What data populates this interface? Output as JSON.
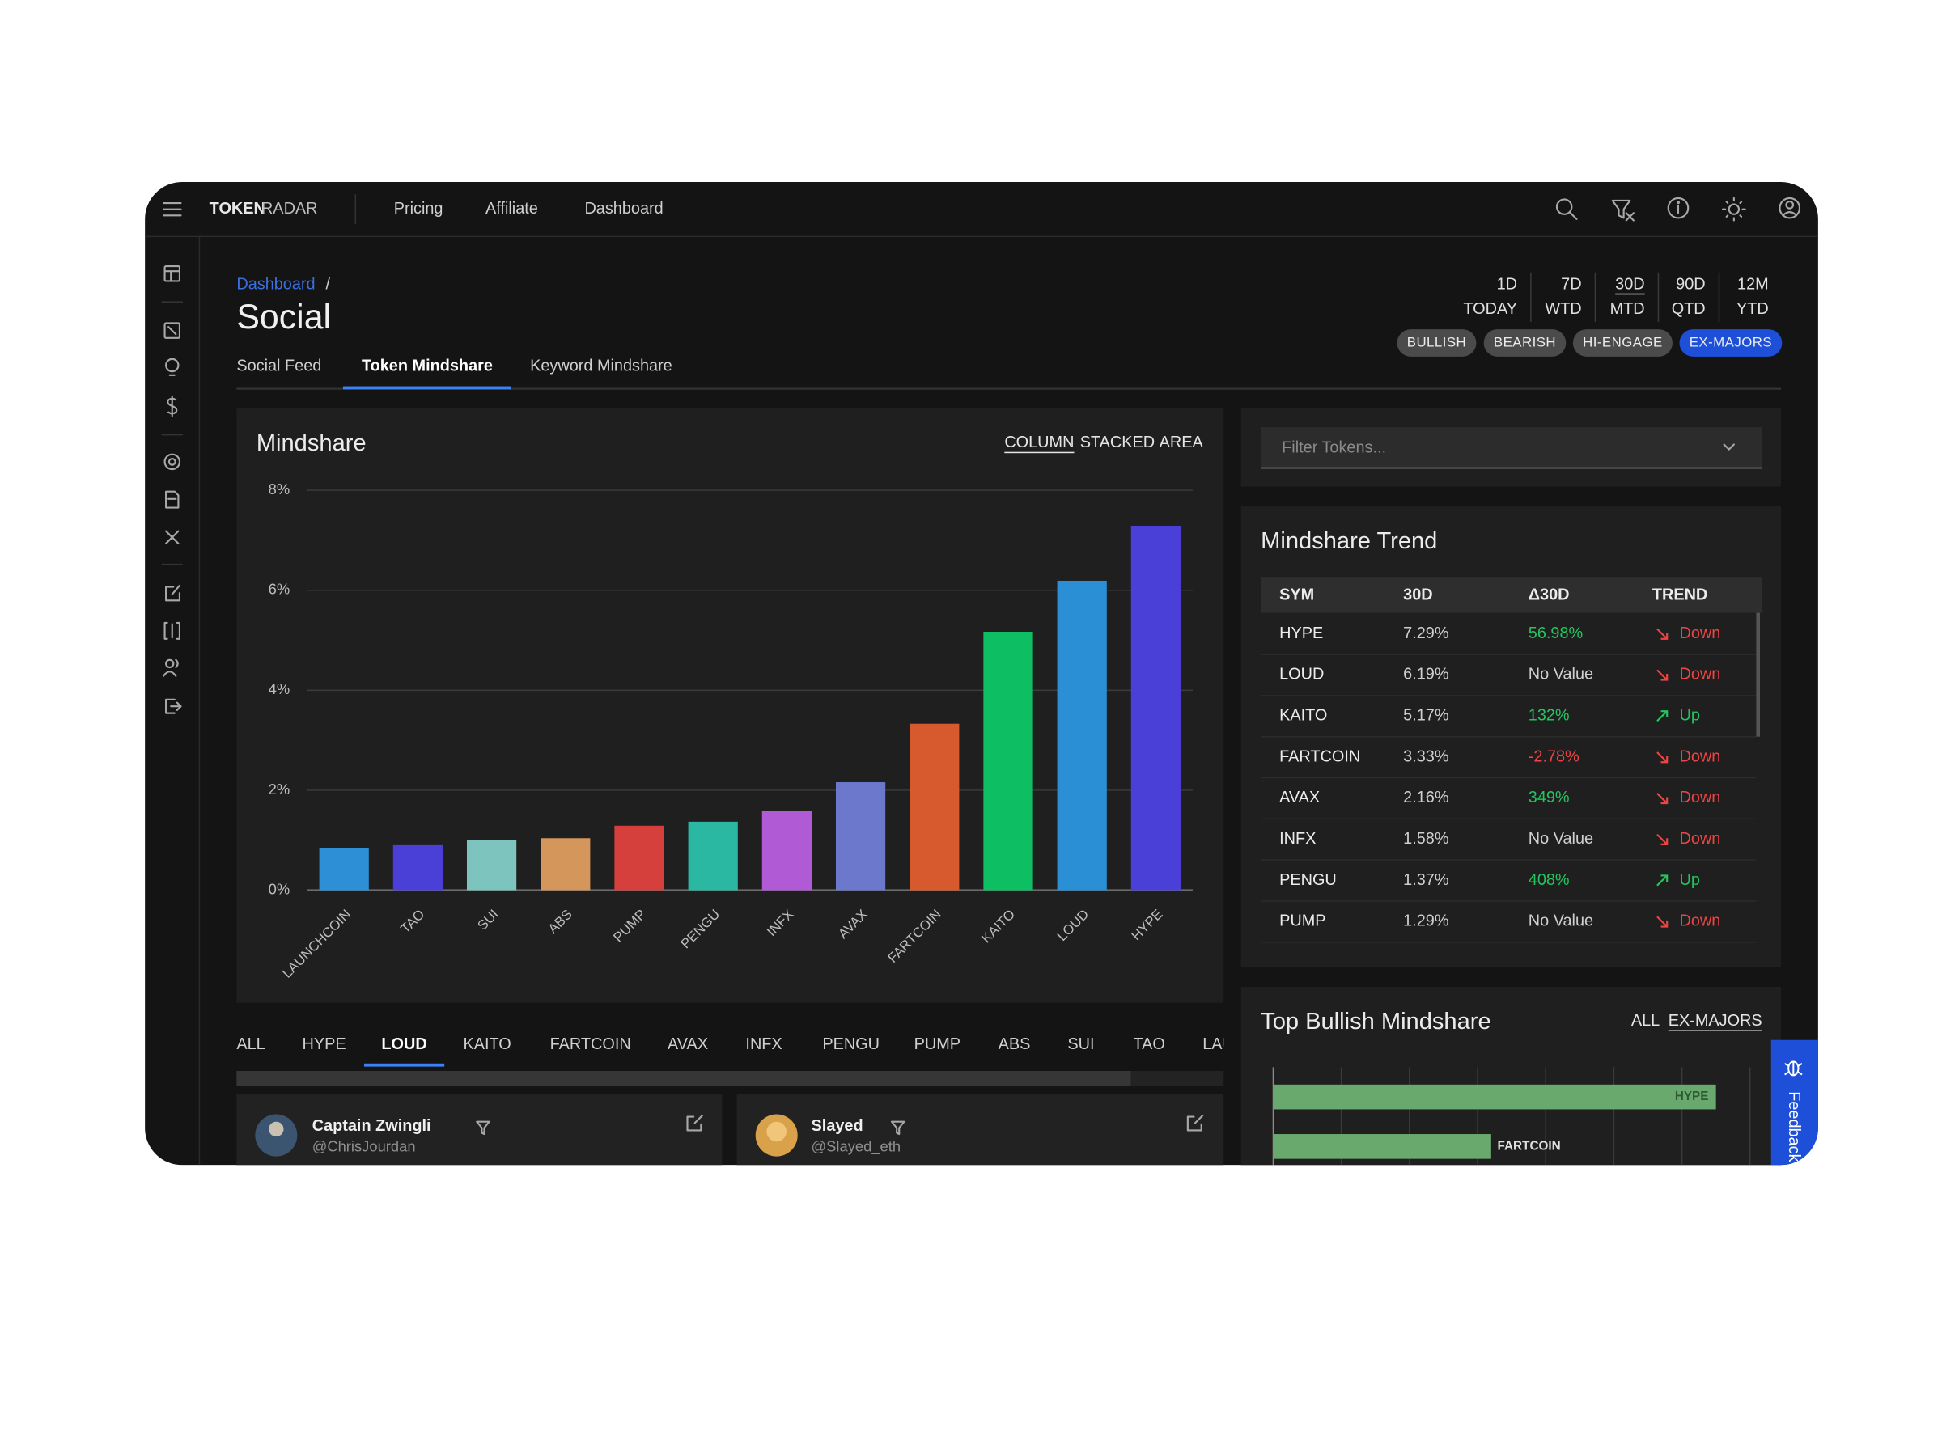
{
  "nav": {
    "brand_bold": "TOKEN",
    "brand_light": "RADAR",
    "links": [
      "Pricing",
      "Affiliate",
      "Dashboard"
    ]
  },
  "breadcrumb": {
    "link": "Dashboard",
    "separator": "/"
  },
  "page_title": "Social",
  "tabs": {
    "items": [
      "Social Feed",
      "Token Mindshare",
      "Keyword Mindshare"
    ],
    "active": 1
  },
  "periods": {
    "items": [
      [
        "1D",
        "TODAY"
      ],
      [
        "7D",
        "WTD"
      ],
      [
        "30D",
        "MTD"
      ],
      [
        "90D",
        "QTD"
      ],
      [
        "12M",
        "YTD"
      ]
    ],
    "active": 2
  },
  "chips": {
    "items": [
      "BULLISH",
      "BEARISH",
      "HI-ENGAGE",
      "EX-MAJORS"
    ],
    "active": 3
  },
  "chart_data": [
    {
      "type": "bar",
      "title": "Mindshare",
      "view_options": {
        "items": [
          "COLUMN",
          "STACKED",
          "AREA"
        ],
        "active": 0
      },
      "categories": [
        "LAUNCHCOIN",
        "TAO",
        "SUI",
        "ABS",
        "PUMP",
        "PENGU",
        "INFX",
        "AVAX",
        "FARTCOIN",
        "KAITO",
        "LOUD",
        "HYPE"
      ],
      "values": [
        0.85,
        0.9,
        1.0,
        1.04,
        1.29,
        1.37,
        1.58,
        2.16,
        3.33,
        5.17,
        6.19,
        7.29
      ],
      "colors": [
        "#2d8fd5",
        "#4a3fd6",
        "#7cc4bd",
        "#d4965a",
        "#d6403c",
        "#2bb8a3",
        "#b05ad6",
        "#6b78cc",
        "#d65a2e",
        "#0dbf62",
        "#2b8fd6",
        "#4a3fd6"
      ],
      "ylim": [
        0,
        8
      ],
      "yticks": [
        {
          "value": 0,
          "label": "0%"
        },
        {
          "value": 2,
          "label": "2%"
        },
        {
          "value": 4,
          "label": "4%"
        },
        {
          "value": 6,
          "label": "6%"
        },
        {
          "value": 8,
          "label": "8%"
        }
      ],
      "grid": true
    },
    {
      "type": "barh",
      "title": "Top Bullish Mindshare",
      "view_options": {
        "items": [
          "ALL",
          "EX-MAJORS"
        ],
        "active": 1
      },
      "categories": [
        "HYPE",
        "FARTCOIN"
      ],
      "values": [
        6.5,
        3.2
      ],
      "color": "#6aa96e",
      "xlim": [
        0,
        7
      ],
      "xticks": [
        0,
        1,
        2,
        3,
        4,
        5,
        6,
        7
      ],
      "grid": true
    }
  ],
  "filter": {
    "placeholder": "Filter Tokens..."
  },
  "trend_table": {
    "title": "Mindshare Trend",
    "headers": [
      "SYM",
      "30D",
      "Δ30D",
      "TREND"
    ],
    "rows": [
      {
        "sym": "HYPE",
        "share": "7.29%",
        "change": "56.98%",
        "trend": "Down",
        "change_color": "#22c55e",
        "trend_color": "#ef4444",
        "trend_up": false
      },
      {
        "sym": "LOUD",
        "share": "6.19%",
        "change": "No Value",
        "trend": "Down",
        "change_color": "#cfcfcf",
        "trend_color": "#ef4444",
        "trend_up": false
      },
      {
        "sym": "KAITO",
        "share": "5.17%",
        "change": "132%",
        "trend": "Up",
        "change_color": "#22c55e",
        "trend_color": "#22c55e",
        "trend_up": true
      },
      {
        "sym": "FARTCOIN",
        "share": "3.33%",
        "change": "-2.78%",
        "trend": "Down",
        "change_color": "#ef4444",
        "trend_color": "#ef4444",
        "trend_up": false
      },
      {
        "sym": "AVAX",
        "share": "2.16%",
        "change": "349%",
        "trend": "Down",
        "change_color": "#22c55e",
        "trend_color": "#ef4444",
        "trend_up": false
      },
      {
        "sym": "INFX",
        "share": "1.58%",
        "change": "No Value",
        "trend": "Down",
        "change_color": "#cfcfcf",
        "trend_color": "#ef4444",
        "trend_up": false
      },
      {
        "sym": "PENGU",
        "share": "1.37%",
        "change": "408%",
        "trend": "Up",
        "change_color": "#22c55e",
        "trend_color": "#22c55e",
        "trend_up": true
      },
      {
        "sym": "PUMP",
        "share": "1.29%",
        "change": "No Value",
        "trend": "Down",
        "change_color": "#cfcfcf",
        "trend_color": "#ef4444",
        "trend_up": false
      }
    ]
  },
  "token_tabs": {
    "items": [
      "ALL",
      "HYPE",
      "LOUD",
      "KAITO",
      "FARTCOIN",
      "AVAX",
      "INFX",
      "PENGU",
      "PUMP",
      "ABS",
      "SUI",
      "TAO",
      "LAUNCHCOIN"
    ],
    "active": 2
  },
  "posts": [
    {
      "name": "Captain Zwingli",
      "handle": "@ChrisJourdan"
    },
    {
      "name": "Slayed",
      "handle": "@Slayed_eth"
    }
  ],
  "feedback": "Feedback"
}
